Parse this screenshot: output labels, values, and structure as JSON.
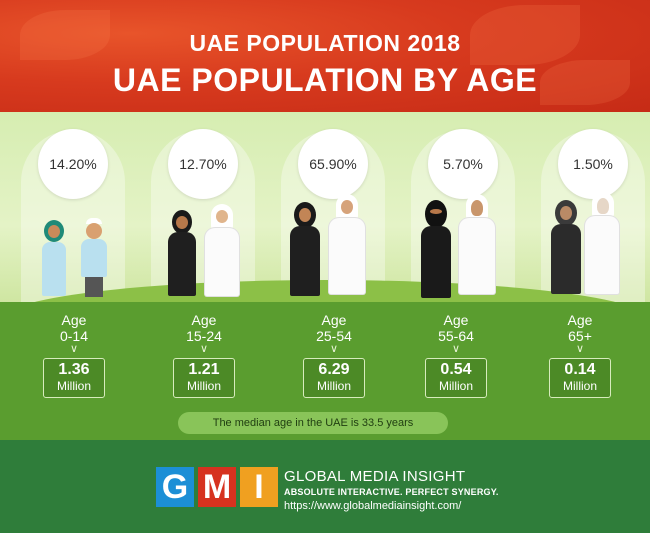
{
  "header": {
    "title": "UAE POPULATION 2018",
    "subtitle": "UAE POPULATION BY AGE"
  },
  "groups": [
    {
      "percent": "14.20%",
      "age_label": "Age",
      "range": "0-14",
      "value": "1.36",
      "unit": "Million"
    },
    {
      "percent": "12.70%",
      "age_label": "Age",
      "range": "15-24",
      "value": "1.21",
      "unit": "Million"
    },
    {
      "percent": "65.90%",
      "age_label": "Age",
      "range": "25-54",
      "value": "6.29",
      "unit": "Million"
    },
    {
      "percent": "5.70%",
      "age_label": "Age",
      "range": "55-64",
      "value": "0.54",
      "unit": "Million"
    },
    {
      "percent": "1.50%",
      "age_label": "Age",
      "range": "65+",
      "value": "0.14",
      "unit": "Million"
    }
  ],
  "median_text": "The median age in the UAE is 33.5 years",
  "footer": {
    "logo_letters": [
      "G",
      "M",
      "I"
    ],
    "brand": "GLOBAL MEDIA INSIGHT",
    "tagline": "ABSOLUTE INTERACTIVE. PERFECT SYNERGY.",
    "url": "https://www.globalmediainsight.com/"
  },
  "colors": {
    "header_red": "#d73a1e",
    "scene_green": "#d6edb1",
    "info_green": "#5a9d2f",
    "footer_green": "#2f7d3a",
    "logo_blue": "#1c8fd6",
    "logo_red": "#d6321f",
    "logo_orange": "#f0a020"
  }
}
